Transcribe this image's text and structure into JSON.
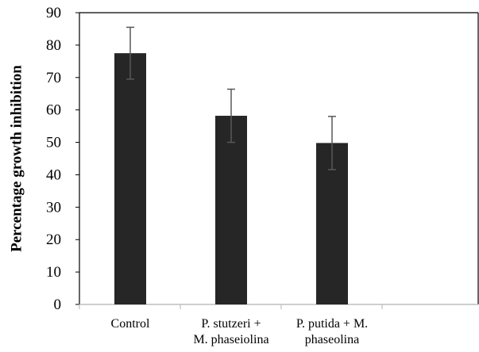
{
  "chart_data": {
    "type": "bar",
    "title": "",
    "xlabel": "",
    "ylabel": "Percentage growth inhibition",
    "ylim": [
      0,
      90
    ],
    "yticks": [
      0,
      10,
      20,
      30,
      40,
      50,
      60,
      70,
      80,
      90
    ],
    "categories": [
      [
        "Control"
      ],
      [
        "P. stutzeri +",
        "M. phaseiolina"
      ],
      [
        "P. putida + M.",
        "phaseolina"
      ]
    ],
    "values": [
      77.5,
      58.2,
      49.8
    ],
    "errors": [
      8.0,
      8.2,
      8.2
    ],
    "grid": false,
    "colors": {
      "bar": "#262626",
      "error_bar": "#595959",
      "axis": "#000000",
      "x_axis": "#bfbfbf"
    }
  }
}
